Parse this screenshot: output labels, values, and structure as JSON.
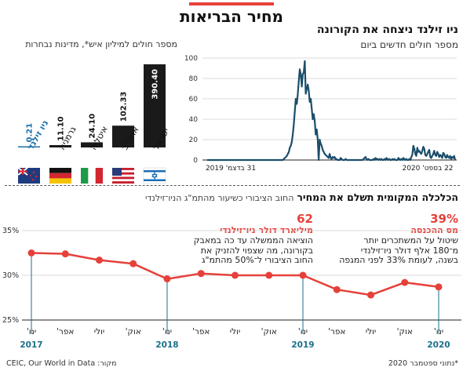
{
  "header": {
    "title": "מחיר הבריאות",
    "accent_color": "#e5413a"
  },
  "daily_cases": {
    "title": "ניו זילנד ניצחה את הקורונה",
    "subtitle": "מספר חולים חדשים ביום",
    "y_ticks": [
      "100",
      "80",
      "60",
      "40",
      "20",
      "0"
    ],
    "x_left_label": "31 בדצמ' 2019",
    "x_right_label": "22 בספט' 2020"
  },
  "countries": {
    "title": "מספר חולים למיליון איש*, מדינות נבחרות"
  },
  "economy": {
    "title_bold": "הכלכלה המקומית תשלם את המחיר",
    "title_light": "החוב הציבורי כשיעור מהתמ\"ג הניו־זילנדי",
    "callout_right": {
      "value": "62",
      "unit": "מיליארד דולר ניו־זילנדי",
      "lines": [
        "הוציאה הממשלה עד כה במאבק",
        "בקורונה, מה שצפוי להזניק את",
        "החוב הציבורי ל־50% מהתמ\"ג"
      ]
    },
    "callout_left": {
      "value": "39%",
      "unit": "מס ההכנסה",
      "lines": [
        "שיטול על המשתכרים יותר",
        "מ־180 אלף דולר ניו־זילנדי",
        "בשנה, לעומת 33% לפני המגפה"
      ]
    }
  },
  "footer": {
    "note": "*נתוני ספטמבר 2020",
    "source": "מקור: CEIC, Our World in Data"
  },
  "chart_data": [
    {
      "type": "line",
      "title": "ניו זילנד ניצחה את הקורונה",
      "ylabel": "מספר חולים חדשים ביום",
      "x_range": [
        "2019-12-31",
        "2020-09-22"
      ],
      "ylim": [
        0,
        100
      ],
      "y_ticks": [
        0,
        20,
        40,
        60,
        80,
        100
      ],
      "grid": true,
      "color": "#1b4e6b",
      "values": [
        0,
        0,
        0,
        0,
        0,
        0,
        0,
        0,
        0,
        0,
        0,
        0,
        0,
        0,
        0,
        0,
        0,
        0,
        0,
        0,
        0,
        0,
        0,
        0,
        0,
        0,
        0,
        0,
        0,
        0,
        0,
        0,
        0,
        0,
        0,
        0,
        0,
        0,
        0,
        0,
        0,
        0,
        0,
        0,
        0,
        0,
        0,
        0,
        0,
        0,
        0,
        0,
        0,
        0,
        0,
        0,
        0,
        0,
        0,
        0,
        0,
        0,
        0,
        0,
        0,
        0,
        0,
        0,
        0,
        0,
        0,
        0,
        0,
        0,
        0,
        0,
        0,
        1,
        2,
        3,
        4,
        6,
        8,
        12,
        14,
        18,
        25,
        35,
        48,
        60,
        55,
        65,
        78,
        89,
        84,
        72,
        84,
        86,
        97,
        65,
        70,
        74,
        68,
        57,
        60,
        50,
        40,
        45,
        38,
        25,
        30,
        20,
        0,
        20,
        16,
        14,
        10,
        8,
        6,
        5,
        4,
        3,
        2,
        6,
        2,
        1,
        3,
        2,
        3,
        1,
        1,
        0,
        0,
        0,
        2,
        1,
        0,
        0,
        0,
        1,
        0,
        0,
        0,
        0,
        0,
        0,
        0,
        0,
        0,
        0,
        0,
        0,
        0,
        0,
        0,
        0,
        0,
        1,
        2,
        3,
        1,
        0,
        1,
        0,
        0,
        0,
        0,
        1,
        0,
        2,
        1,
        1,
        0,
        1,
        0,
        1,
        0,
        0,
        1,
        0,
        2,
        1,
        0,
        1,
        0,
        0,
        1,
        0,
        1,
        0,
        0,
        0,
        2,
        1,
        0,
        1,
        0,
        2,
        1,
        0,
        1,
        0,
        0,
        1,
        0,
        3,
        5,
        14,
        11,
        6,
        4,
        12,
        8,
        9,
        7,
        6,
        9,
        13,
        11,
        5,
        4,
        6,
        8,
        10,
        3,
        2,
        4,
        6,
        9,
        5,
        4,
        8,
        6,
        3,
        5,
        4,
        2,
        7,
        6,
        3,
        2,
        5,
        3,
        2,
        4,
        1,
        3,
        2,
        4,
        0
      ]
    },
    {
      "type": "bar",
      "title": "מספר חולים למיליון איש*, מדינות נבחרות",
      "categories": [
        "ישראל",
        "ארה\"ב",
        "איטליה",
        "גרמניה",
        "ניו זילנד"
      ],
      "values": [
        390.4,
        102.33,
        24.1,
        11.1,
        0.21
      ],
      "value_labels": [
        "390.40",
        "102.33",
        "24.10",
        "11.10",
        "0.21"
      ],
      "colors": [
        "#1a1a1a",
        "#1a1a1a",
        "#1a1a1a",
        "#1a1a1a",
        "#1b6fa8"
      ]
    },
    {
      "type": "line",
      "title": "הכלכלה המקומית תשלם את המחיר",
      "subtitle": "החוב הציבורי כשיעור מהתמ\"ג הניו־זילנדי",
      "x": [
        "ינו' 2017",
        "אפר' 2017",
        "יולי 2017",
        "אוק' 2017",
        "ינו' 2018",
        "אפר' 2018",
        "יולי 2018",
        "אוק' 2018",
        "ינו' 2019",
        "אפר' 2019",
        "יולי 2019",
        "אוק' 2019",
        "ינו' 2020"
      ],
      "x_tick_labels": [
        "ינו'",
        "אפר'",
        "יולי",
        "אוק'",
        "ינו'",
        "אפר'",
        "יולי",
        "אוק'",
        "ינו'",
        "אפר'",
        "יולי",
        "אוק'",
        "ינו'"
      ],
      "x_year_labels": [
        "2017",
        "2018",
        "2019",
        "2020"
      ],
      "values": [
        32.5,
        32.4,
        31.7,
        31.3,
        29.6,
        30.2,
        30.0,
        30.0,
        30.0,
        28.4,
        27.8,
        29.2,
        28.7
      ],
      "ylim": [
        25,
        35
      ],
      "y_ticks": [
        "25%",
        "30%",
        "35%"
      ],
      "grid": true,
      "color": "#e5413a"
    }
  ]
}
